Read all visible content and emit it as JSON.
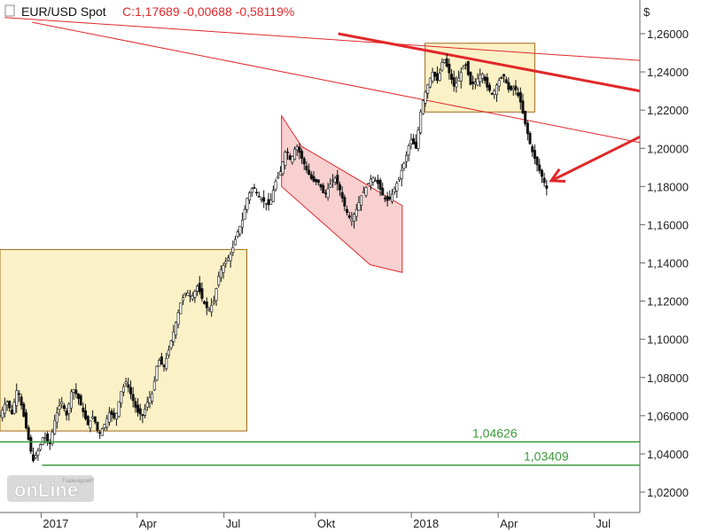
{
  "header": {
    "symbol": "EUR/USD Spot",
    "close_text": "C:1,17689 -0,00688 -0,58119%"
  },
  "logo": {
    "brand": "Tradesignal online"
  },
  "chart_data": {
    "type": "candlestick",
    "title": "EUR/USD Spot",
    "ylabel": "$",
    "ylim": [
      1.01,
      1.27
    ],
    "y_ticks": [
      "1,02000",
      "1,04000",
      "1,06000",
      "1,08000",
      "1,10000",
      "1,12000",
      "1,14000",
      "1,16000",
      "1,18000",
      "1,20000",
      "1,22000",
      "1,24000",
      "1,26000"
    ],
    "x_ticks": [
      "2017",
      "Apr",
      "Jul",
      "Okt",
      "2018",
      "Apr",
      "Jul"
    ],
    "last_close": 1.17689,
    "levels": [
      {
        "label": "1,04626",
        "value": 1.04626,
        "color": "#3a9a3a"
      },
      {
        "label": "1,03409",
        "value": 1.03409,
        "color": "#3a9a3a"
      }
    ],
    "series_path": [
      [
        0,
        1.06
      ],
      [
        0.7,
        1.068
      ],
      [
        1.3,
        1.061
      ],
      [
        1.9,
        1.075
      ],
      [
        2.5,
        1.062
      ],
      [
        3.1,
        1.048
      ],
      [
        3.6,
        1.036
      ],
      [
        4.2,
        1.042
      ],
      [
        4.8,
        1.05
      ],
      [
        5.4,
        1.044
      ],
      [
        6.0,
        1.058
      ],
      [
        6.7,
        1.068
      ],
      [
        7.3,
        1.06
      ],
      [
        7.9,
        1.075
      ],
      [
        8.5,
        1.07
      ],
      [
        9.1,
        1.062
      ],
      [
        9.6,
        1.055
      ],
      [
        10.2,
        1.06
      ],
      [
        10.8,
        1.05
      ],
      [
        11.4,
        1.055
      ],
      [
        12.0,
        1.062
      ],
      [
        12.6,
        1.058
      ],
      [
        13.2,
        1.072
      ],
      [
        13.8,
        1.078
      ],
      [
        14.4,
        1.07
      ],
      [
        15.0,
        1.062
      ],
      [
        15.6,
        1.06
      ],
      [
        16.2,
        1.068
      ],
      [
        16.7,
        1.072
      ],
      [
        17.3,
        1.09
      ],
      [
        17.9,
        1.085
      ],
      [
        18.5,
        1.095
      ],
      [
        19.2,
        1.108
      ],
      [
        19.8,
        1.12
      ],
      [
        20.4,
        1.125
      ],
      [
        21.0,
        1.122
      ],
      [
        21.6,
        1.128
      ],
      [
        22.2,
        1.12
      ],
      [
        22.8,
        1.115
      ],
      [
        23.4,
        1.12
      ],
      [
        24.0,
        1.135
      ],
      [
        24.6,
        1.14
      ],
      [
        25.3,
        1.145
      ],
      [
        25.9,
        1.155
      ],
      [
        26.5,
        1.162
      ],
      [
        27.1,
        1.175
      ],
      [
        27.7,
        1.18
      ],
      [
        28.3,
        1.175
      ],
      [
        28.9,
        1.172
      ],
      [
        29.5,
        1.17
      ],
      [
        30.1,
        1.182
      ],
      [
        30.7,
        1.188
      ],
      [
        31.3,
        1.2
      ],
      [
        31.8,
        1.193
      ],
      [
        32.4,
        1.202
      ],
      [
        33.0,
        1.195
      ],
      [
        33.6,
        1.188
      ],
      [
        34.2,
        1.183
      ],
      [
        34.9,
        1.182
      ],
      [
        35.5,
        1.175
      ],
      [
        36.0,
        1.18
      ],
      [
        36.6,
        1.185
      ],
      [
        37.2,
        1.178
      ],
      [
        37.8,
        1.168
      ],
      [
        38.4,
        1.162
      ],
      [
        39.0,
        1.168
      ],
      [
        39.5,
        1.175
      ],
      [
        40.1,
        1.18
      ],
      [
        40.7,
        1.185
      ],
      [
        41.3,
        1.182
      ],
      [
        41.9,
        1.175
      ],
      [
        42.5,
        1.172
      ],
      [
        43.1,
        1.178
      ],
      [
        43.7,
        1.185
      ],
      [
        44.4,
        1.195
      ],
      [
        44.9,
        1.205
      ],
      [
        45.5,
        1.2
      ],
      [
        46.1,
        1.222
      ],
      [
        46.7,
        1.232
      ],
      [
        47.3,
        1.24
      ],
      [
        47.9,
        1.235
      ],
      [
        48.5,
        1.248
      ],
      [
        49.1,
        1.24
      ],
      [
        49.7,
        1.232
      ],
      [
        50.3,
        1.238
      ],
      [
        50.9,
        1.245
      ],
      [
        51.5,
        1.233
      ],
      [
        52.1,
        1.235
      ],
      [
        52.7,
        1.24
      ],
      [
        53.3,
        1.232
      ],
      [
        53.9,
        1.228
      ],
      [
        54.5,
        1.235
      ],
      [
        55.1,
        1.238
      ],
      [
        55.7,
        1.23
      ],
      [
        56.3,
        1.232
      ],
      [
        56.9,
        1.225
      ],
      [
        57.5,
        1.212
      ],
      [
        58.1,
        1.2
      ],
      [
        58.7,
        1.192
      ],
      [
        59.3,
        1.185
      ],
      [
        59.7,
        1.18
      ],
      [
        60.0,
        1.177
      ]
    ],
    "annotations": {
      "channel_upper_1": {
        "from": [
          0.5,
          1.2685
        ],
        "to": [
          70,
          1.246
        ]
      },
      "channel_lower_1": {
        "from": [
          3.5,
          1.266
        ],
        "to": [
          70,
          1.203
        ]
      },
      "trend_thick": {
        "from": [
          37,
          1.26
        ],
        "to": [
          70,
          1.23
        ]
      },
      "arrow": {
        "from": [
          70,
          1.206
        ],
        "to": [
          60.3,
          1.183
        ]
      },
      "boxes": [
        {
          "x": [
            0,
            27
          ],
          "y": [
            1.052,
            1.147
          ],
          "fill": "#fbf1c7",
          "stroke": "#a06a1a"
        },
        {
          "x": [
            46.5,
            58.5
          ],
          "y": [
            1.219,
            1.255
          ],
          "fill": "#fbf1c7",
          "stroke": "#a06a1a"
        }
      ],
      "channel_polygon": [
        [
          30.8,
          1.217
        ],
        [
          33.0,
          1.201
        ],
        [
          44.0,
          1.17
        ],
        [
          44.0,
          1.135
        ],
        [
          40.5,
          1.139
        ],
        [
          30.8,
          1.18
        ]
      ]
    }
  },
  "colors": {
    "accent": "#e0282a",
    "level_green": "#3a9a3a",
    "box_fill": "#fbf1c7",
    "channel_fill": "#f7c8c8",
    "candle": "#111111"
  }
}
